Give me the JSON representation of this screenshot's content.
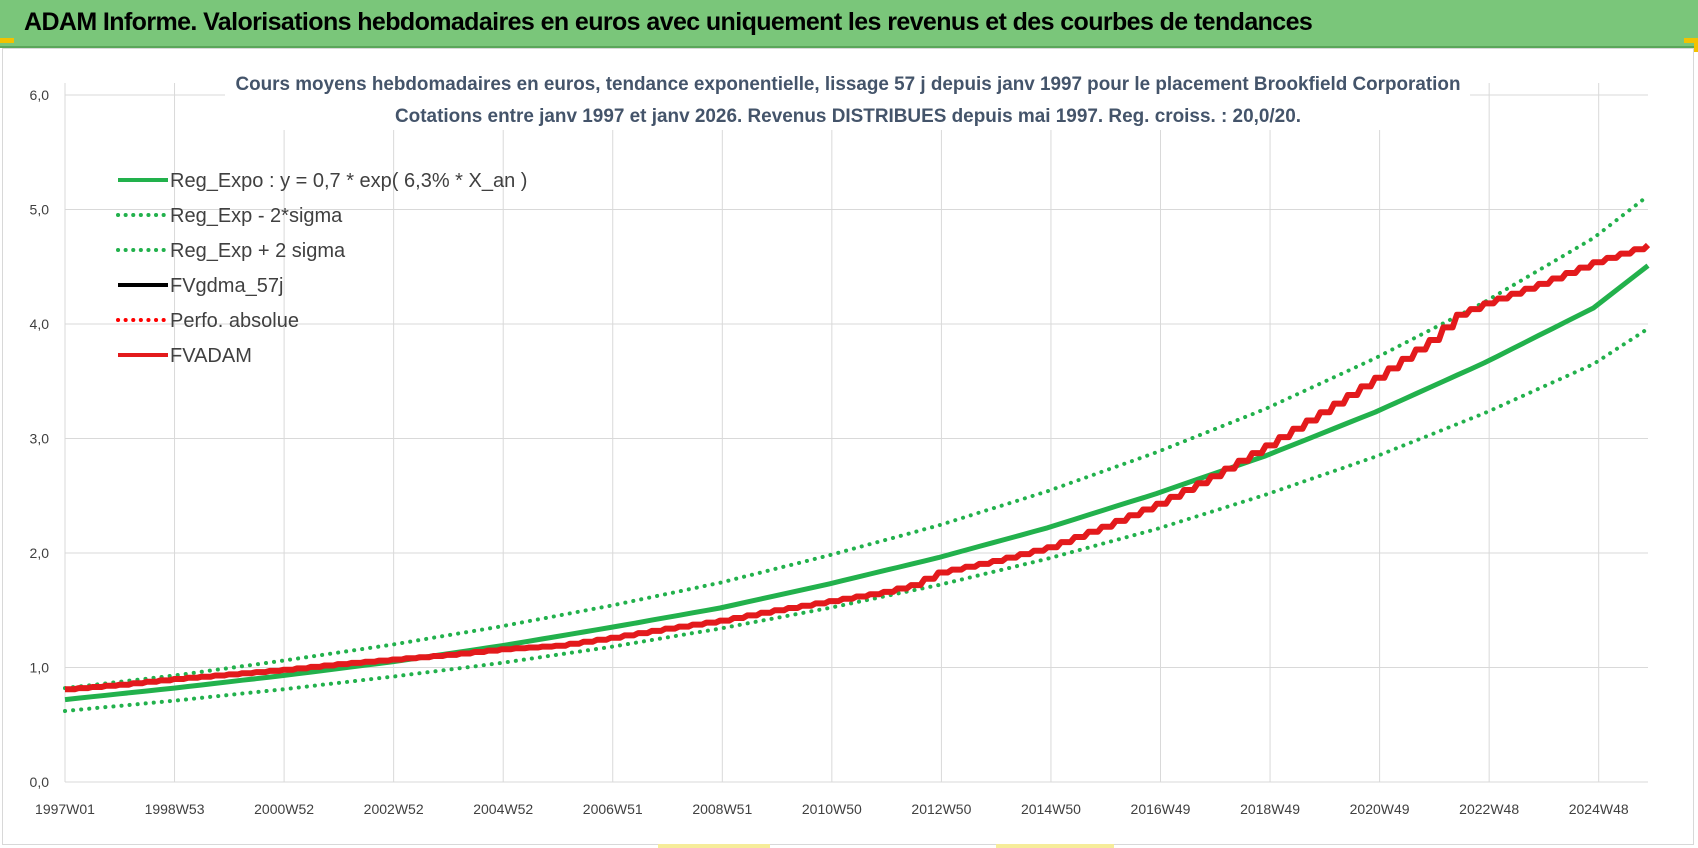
{
  "header": {
    "title": "ADAM Informe. Valorisations hebdomadaires en euros avec uniquement les revenus et des courbes de tendances"
  },
  "colors": {
    "banner": "#7ac67a",
    "reg_expo": "#22b14c",
    "bands": "#22b14c",
    "fvgdma": "#000000",
    "perfo": "#ff0000",
    "fvadam": "#e31a1c",
    "grid": "#d9d9d9",
    "axis_text": "#404040",
    "title_text": "#44546a"
  },
  "chart_data": {
    "type": "line",
    "title": "Cours moyens hebdomadaires en euros, tendance exponentielle, lissage 57 j depuis janv 1997 pour le placement Brookfield Corporation",
    "subtitle": "Cotations entre janv 1997 et janv 2026. Revenus DISTRIBUES depuis mai 1997. Reg. croiss. : 20,0/20.",
    "xlabel": "",
    "ylabel": "",
    "ylim": [
      0,
      6
    ],
    "y_ticks": [
      "0,0",
      "1,0",
      "2,0",
      "3,0",
      "4,0",
      "5,0",
      "6,0"
    ],
    "x_ticks": [
      "1997W01",
      "1998W53",
      "2000W52",
      "2002W52",
      "2004W52",
      "2006W51",
      "2008W51",
      "2010W50",
      "2012W50",
      "2014W50",
      "2016W49",
      "2018W49",
      "2020W49",
      "2022W48",
      "2024W48"
    ],
    "x_range": [
      1997.0,
      2026.0
    ],
    "legend_position": "top-left",
    "grid": true,
    "series": [
      {
        "name": "Reg_Expo : y = 0,7 * exp( 6,3% *  X_an )",
        "style": "solid-thick",
        "color": "#22b14c",
        "x": [
          1997,
          1999,
          2001,
          2003,
          2005,
          2007,
          2009,
          2011,
          2013,
          2015,
          2017,
          2019,
          2021,
          2023,
          2025,
          2026
        ],
        "y": [
          0.72,
          0.82,
          0.93,
          1.05,
          1.19,
          1.35,
          1.52,
          1.73,
          1.96,
          2.22,
          2.52,
          2.85,
          3.23,
          3.66,
          4.14,
          4.51
        ]
      },
      {
        "name": "Reg_Exp - 2*sigma",
        "style": "dotted",
        "color": "#22b14c",
        "x": [
          1997,
          1999,
          2001,
          2003,
          2005,
          2007,
          2009,
          2011,
          2013,
          2015,
          2017,
          2019,
          2021,
          2023,
          2025,
          2026
        ],
        "y": [
          0.62,
          0.71,
          0.81,
          0.92,
          1.04,
          1.18,
          1.34,
          1.52,
          1.72,
          1.95,
          2.21,
          2.51,
          2.84,
          3.22,
          3.65,
          3.96
        ]
      },
      {
        "name": "Reg_Exp + 2 sigma",
        "style": "dotted",
        "color": "#22b14c",
        "x": [
          1997,
          1999,
          2001,
          2003,
          2005,
          2007,
          2009,
          2011,
          2013,
          2015,
          2017,
          2019,
          2021,
          2023,
          2025,
          2026
        ],
        "y": [
          0.82,
          0.93,
          1.06,
          1.2,
          1.36,
          1.54,
          1.74,
          1.98,
          2.24,
          2.54,
          2.88,
          3.26,
          3.7,
          4.19,
          4.75,
          5.12
        ]
      },
      {
        "name": "FVgdma_57j",
        "style": "solid",
        "color": "#000000",
        "x": [],
        "y": []
      },
      {
        "name": "Perfo. absolue",
        "style": "dotted",
        "color": "#ff0000",
        "x": [],
        "y": []
      },
      {
        "name": "FVADAM",
        "style": "solid-thick",
        "color": "#e31a1c",
        "x": [
          1997,
          1998,
          1999,
          2000,
          2001,
          2002,
          2003,
          2004,
          2005,
          2006,
          2007,
          2008,
          2009,
          2010,
          2011,
          2012,
          2012.5,
          2013,
          2014,
          2015,
          2016,
          2017,
          2018,
          2019,
          2020,
          2021,
          2022,
          2022.5,
          2023,
          2024,
          2025,
          2026
        ],
        "y": [
          0.81,
          0.85,
          0.9,
          0.94,
          0.98,
          1.03,
          1.07,
          1.11,
          1.16,
          1.19,
          1.26,
          1.34,
          1.41,
          1.5,
          1.58,
          1.66,
          1.72,
          1.83,
          1.93,
          2.05,
          2.23,
          2.43,
          2.67,
          2.94,
          3.23,
          3.53,
          3.86,
          4.08,
          4.18,
          4.35,
          4.54,
          4.69
        ]
      }
    ]
  }
}
